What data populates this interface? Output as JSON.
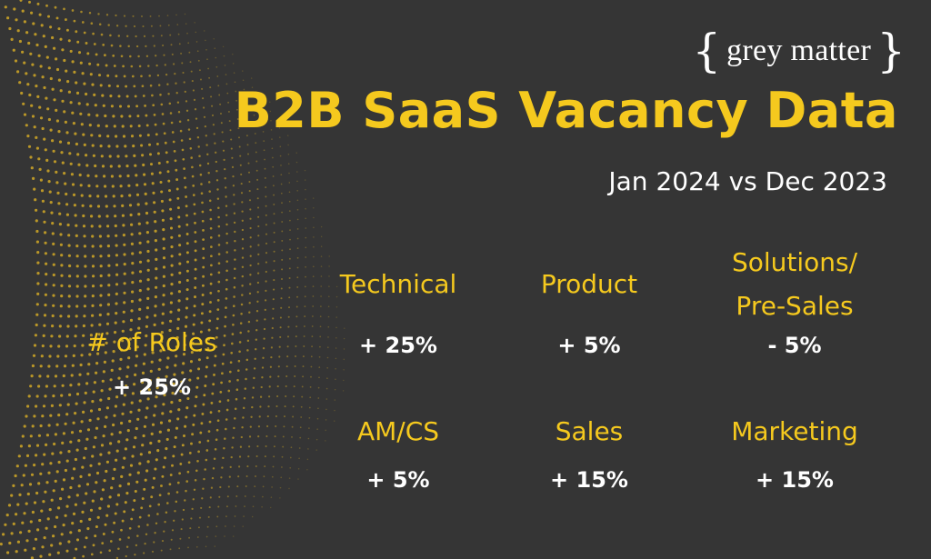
{
  "brand": {
    "name": "grey matter",
    "brace_open": "{",
    "brace_close": "}"
  },
  "title": "B2B SaaS Vacancy Data",
  "subtitle": "Jan 2024 vs Dec 2023",
  "overall": {
    "label": "# of Roles",
    "value": "+ 25%"
  },
  "categories": [
    {
      "label": "Technical",
      "value": "+ 25%"
    },
    {
      "label": "Product",
      "value": "+ 5%"
    },
    {
      "label_line1": "Solutions/",
      "label_line2": "Pre-Sales",
      "value": "- 5%"
    },
    {
      "label": "AM/CS",
      "value": "+ 5%"
    },
    {
      "label": "Sales",
      "value": "+ 15%"
    },
    {
      "label": "Marketing",
      "value": "+ 15%"
    }
  ],
  "colors": {
    "background": "#353535",
    "accent": "#f5c91e",
    "text": "#ffffff",
    "dots": "#c9a227"
  }
}
